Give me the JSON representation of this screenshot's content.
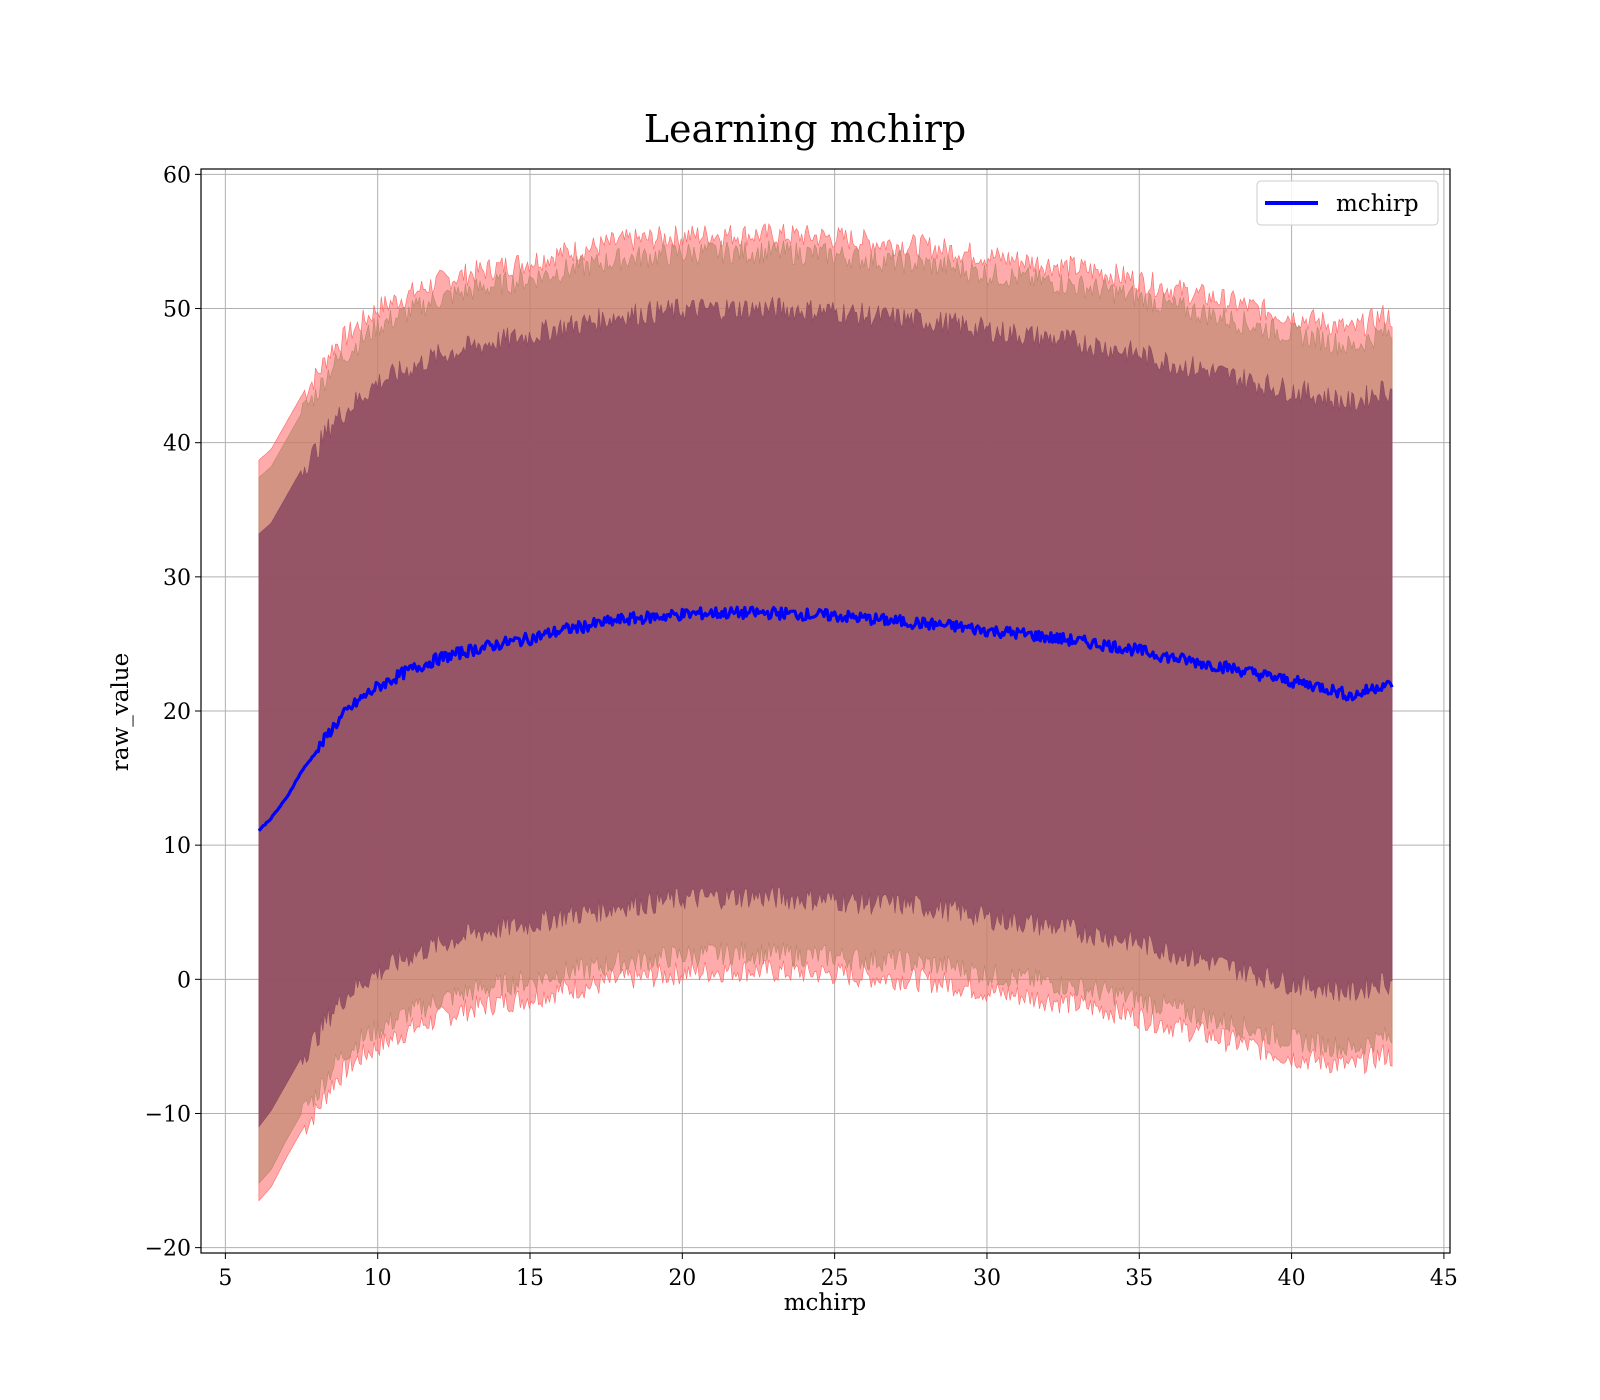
{
  "chart_data": {
    "type": "line",
    "title": "Learning mchirp",
    "xlabel": "mchirp",
    "ylabel": "raw_value",
    "xlim": [
      4.2,
      45.2
    ],
    "ylim": [
      -20.4,
      60.4
    ],
    "xticks": [
      5,
      10,
      15,
      20,
      25,
      30,
      35,
      40,
      45
    ],
    "yticks": [
      -20,
      -10,
      0,
      10,
      20,
      30,
      40,
      50,
      60
    ],
    "xtick_labels": [
      "5",
      "10",
      "15",
      "20",
      "25",
      "30",
      "35",
      "40",
      "45"
    ],
    "ytick_labels": [
      "−20",
      "−10",
      "0",
      "10",
      "20",
      "30",
      "40",
      "50",
      "60"
    ],
    "grid": true,
    "legend_position": "top-right",
    "legend": [
      "mchirp"
    ],
    "series": [
      {
        "name": "mchirp",
        "color": "#0000ff",
        "x": [
          6.1,
          6.5,
          7.0,
          7.5,
          8.0,
          8.5,
          9.0,
          9.5,
          10.0,
          11.0,
          12.0,
          13.0,
          14.0,
          15.0,
          16.0,
          17.0,
          18.0,
          19.0,
          20.0,
          21.0,
          22.0,
          23.0,
          24.0,
          25.0,
          26.0,
          27.0,
          28.0,
          29.0,
          30.0,
          31.0,
          32.0,
          33.0,
          34.0,
          35.0,
          36.0,
          37.0,
          38.0,
          39.0,
          40.0,
          41.0,
          42.0,
          43.0,
          43.3
        ],
        "y": [
          11.1,
          12.0,
          13.5,
          15.5,
          17.0,
          18.7,
          20.0,
          21.0,
          21.8,
          23.0,
          23.9,
          24.5,
          25.0,
          25.4,
          26.0,
          26.4,
          26.8,
          27.0,
          27.2,
          27.3,
          27.3,
          27.3,
          27.2,
          27.1,
          26.9,
          26.7,
          26.5,
          26.3,
          26.0,
          25.8,
          25.5,
          25.2,
          24.9,
          24.5,
          24.0,
          23.6,
          23.2,
          22.7,
          22.2,
          21.8,
          21.1,
          22.0,
          21.8
        ]
      }
    ],
    "bands": [
      {
        "color": "#ff6666",
        "lower": [
          -16.5,
          -15.5,
          -13.3,
          -11.3,
          -9.8,
          -7.8,
          -6.6,
          -5.7,
          -5.0,
          -3.8,
          -2.9,
          -2.2,
          -1.7,
          -1.4,
          -0.8,
          -0.5,
          0.0,
          0.2,
          0.5,
          0.6,
          0.7,
          0.6,
          0.5,
          0.4,
          0.2,
          0.1,
          -0.1,
          -0.4,
          -0.9,
          -1.2,
          -1.5,
          -1.9,
          -2.3,
          -2.8,
          -3.4,
          -4.0,
          -4.6,
          -5.2,
          -5.8,
          -6.1,
          -6.5,
          -5.6,
          -5.8
        ],
        "upper": [
          38.7,
          39.5,
          41.5,
          43.5,
          45.0,
          47.0,
          48.0,
          49.0,
          50.0,
          51.0,
          52.0,
          52.6,
          53.1,
          53.5,
          54.1,
          54.5,
          55.0,
          55.2,
          55.4,
          55.5,
          55.5,
          55.5,
          55.4,
          55.3,
          55.0,
          54.8,
          54.6,
          54.3,
          53.9,
          53.6,
          53.3,
          53.0,
          52.6,
          52.1,
          51.5,
          51.0,
          50.5,
          49.9,
          49.4,
          49.0,
          48.4,
          49.5,
          49.3
        ]
      },
      {
        "color": "#b8866a",
        "lower": [
          -15.2,
          -14.2,
          -12.0,
          -10.0,
          -8.5,
          -6.6,
          -5.3,
          -4.4,
          -3.7,
          -2.5,
          -1.6,
          -0.9,
          -0.4,
          -0.1,
          0.5,
          0.8,
          1.3,
          1.5,
          1.8,
          1.9,
          2.0,
          1.9,
          1.8,
          1.7,
          1.5,
          1.4,
          1.2,
          0.9,
          0.4,
          0.1,
          -0.2,
          -0.6,
          -1.0,
          -1.5,
          -2.1,
          -2.7,
          -3.3,
          -3.9,
          -4.5,
          -4.8,
          -5.2,
          -4.3,
          -4.5
        ],
        "upper": [
          37.4,
          38.2,
          40.2,
          42.2,
          43.7,
          45.7,
          46.7,
          47.7,
          48.7,
          49.7,
          50.7,
          51.3,
          51.8,
          52.2,
          52.8,
          53.2,
          53.7,
          53.9,
          54.1,
          54.2,
          54.2,
          54.2,
          54.1,
          54.0,
          53.7,
          53.5,
          53.3,
          53.0,
          52.6,
          52.3,
          52.0,
          51.7,
          51.3,
          50.8,
          50.2,
          49.7,
          49.2,
          48.6,
          48.1,
          47.7,
          47.1,
          48.2,
          48.0
        ]
      },
      {
        "color": "#8b4a60",
        "lower": [
          -11.0,
          -9.8,
          -7.8,
          -5.8,
          -4.3,
          -2.4,
          -1.1,
          -0.2,
          0.5,
          1.7,
          2.6,
          3.3,
          3.8,
          4.1,
          4.7,
          5.0,
          5.5,
          5.7,
          6.0,
          6.1,
          6.2,
          6.1,
          6.0,
          5.9,
          5.7,
          5.6,
          5.4,
          5.1,
          4.6,
          4.3,
          4.0,
          3.6,
          3.2,
          2.7,
          2.1,
          1.5,
          0.9,
          0.3,
          -0.3,
          -0.6,
          -1.0,
          -0.1,
          -0.3
        ],
        "upper": [
          33.2,
          34.0,
          36.0,
          38.0,
          39.5,
          41.5,
          42.5,
          43.5,
          44.5,
          45.5,
          46.5,
          47.1,
          47.6,
          48.0,
          48.6,
          49.0,
          49.5,
          49.7,
          49.9,
          50.0,
          50.0,
          50.0,
          49.9,
          49.8,
          49.5,
          49.3,
          49.1,
          48.8,
          48.4,
          48.1,
          47.8,
          47.5,
          47.1,
          46.6,
          46.0,
          45.5,
          45.0,
          44.4,
          43.9,
          43.5,
          42.9,
          44.0,
          43.8
        ]
      }
    ]
  }
}
